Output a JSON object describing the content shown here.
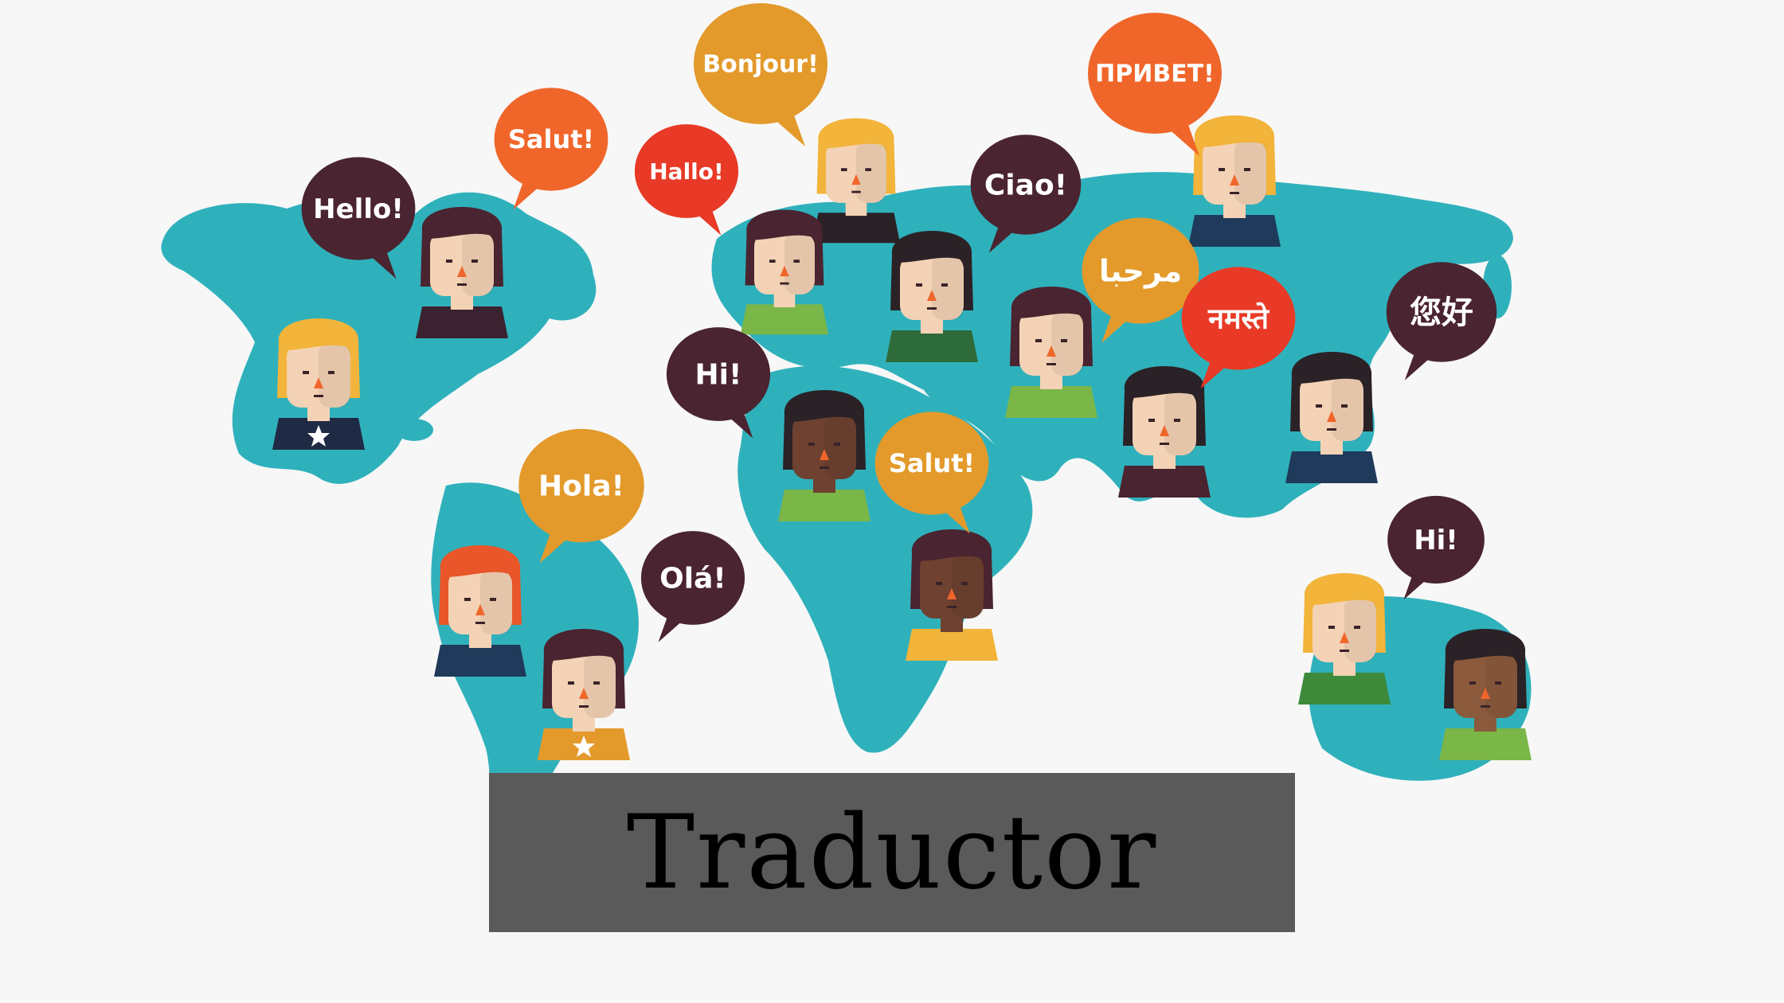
{
  "colors": {
    "background": "#f7f7f7",
    "map": "#2fb1bc",
    "banner": "#5a5a5a",
    "bubble_dark": "#4a2430",
    "bubble_orange": "#f0662a",
    "bubble_amber": "#e39a2b",
    "bubble_red": "#e83a26",
    "skin_light": "#f4d2b5",
    "skin_dark": "#6e4130",
    "skin_medium": "#8b5a3c",
    "hair_dark": "#4a2430",
    "hair_blond": "#f2b43a",
    "hair_red": "#e9562a",
    "hair_black": "#2a2226"
  },
  "banner": {
    "title": "Traductor"
  },
  "bubbles": [
    {
      "id": "hello",
      "text": "Hello!",
      "color": "bubble_dark"
    },
    {
      "id": "salut-na",
      "text": "Salut!",
      "color": "bubble_orange"
    },
    {
      "id": "bonjour",
      "text": "Bonjour!",
      "color": "bubble_amber"
    },
    {
      "id": "hallo",
      "text": "Hallo!",
      "color": "bubble_red"
    },
    {
      "id": "privet",
      "text": "ПРИВЕТ!",
      "color": "bubble_orange"
    },
    {
      "id": "ciao",
      "text": "Ciao!",
      "color": "bubble_dark"
    },
    {
      "id": "marhaba",
      "text": "مرحبا",
      "color": "bubble_amber"
    },
    {
      "id": "namaste",
      "text": "नमस्ते",
      "color": "bubble_red"
    },
    {
      "id": "ninhao",
      "text": "您好",
      "color": "bubble_dark"
    },
    {
      "id": "hi-africa",
      "text": "Hi!",
      "color": "bubble_dark"
    },
    {
      "id": "salut-africa",
      "text": "Salut!",
      "color": "bubble_amber"
    },
    {
      "id": "hola",
      "text": "Hola!",
      "color": "bubble_amber"
    },
    {
      "id": "ola",
      "text": "Olá!",
      "color": "bubble_dark"
    },
    {
      "id": "hi-australia",
      "text": "Hi!",
      "color": "bubble_dark"
    }
  ],
  "people": [
    {
      "id": "na-blond",
      "skin": "skin_light",
      "hair": "hair_blond",
      "shirt": "#1f2a44",
      "icon": "star-icon"
    },
    {
      "id": "na-dark-hair",
      "skin": "skin_light",
      "hair": "hair_dark",
      "shirt": "#3b2230"
    },
    {
      "id": "eu-blond",
      "skin": "skin_light",
      "hair": "hair_blond",
      "shirt": "#2a2226"
    },
    {
      "id": "eu-dark-hair",
      "skin": "skin_light",
      "hair": "hair_dark",
      "shirt": "#7ab648"
    },
    {
      "id": "eu-curly",
      "skin": "skin_light",
      "hair": "hair_black",
      "shirt": "#2e6b3a"
    },
    {
      "id": "ru-headband",
      "skin": "skin_light",
      "hair": "hair_blond",
      "shirt": "#1f3a5a"
    },
    {
      "id": "me-beard",
      "skin": "skin_light",
      "hair": "hair_dark",
      "shirt": "#7ab648"
    },
    {
      "id": "in-long-hair",
      "skin": "skin_light",
      "hair": "hair_black",
      "shirt": "#4a2430"
    },
    {
      "id": "cn-person",
      "skin": "skin_light",
      "hair": "hair_black",
      "shirt": "#1f3a5a"
    },
    {
      "id": "af-afro",
      "skin": "skin_dark",
      "hair": "hair_black",
      "shirt": "#7ab648"
    },
    {
      "id": "af-headband",
      "skin": "skin_dark",
      "hair": "hair_dark",
      "shirt": "#f2b43a"
    },
    {
      "id": "sa-sunglasses",
      "skin": "skin_light",
      "hair": "hair_red",
      "shirt": "#1f3a5a"
    },
    {
      "id": "sa-long-hair",
      "skin": "skin_light",
      "hair": "hair_dark",
      "shirt": "#e39a2b",
      "icon": "star-icon"
    },
    {
      "id": "au-blond",
      "skin": "skin_light",
      "hair": "hair_blond",
      "shirt": "#3c8a3a"
    },
    {
      "id": "au-buns",
      "skin": "skin_medium",
      "hair": "hair_black",
      "shirt": "#7ab648"
    }
  ]
}
